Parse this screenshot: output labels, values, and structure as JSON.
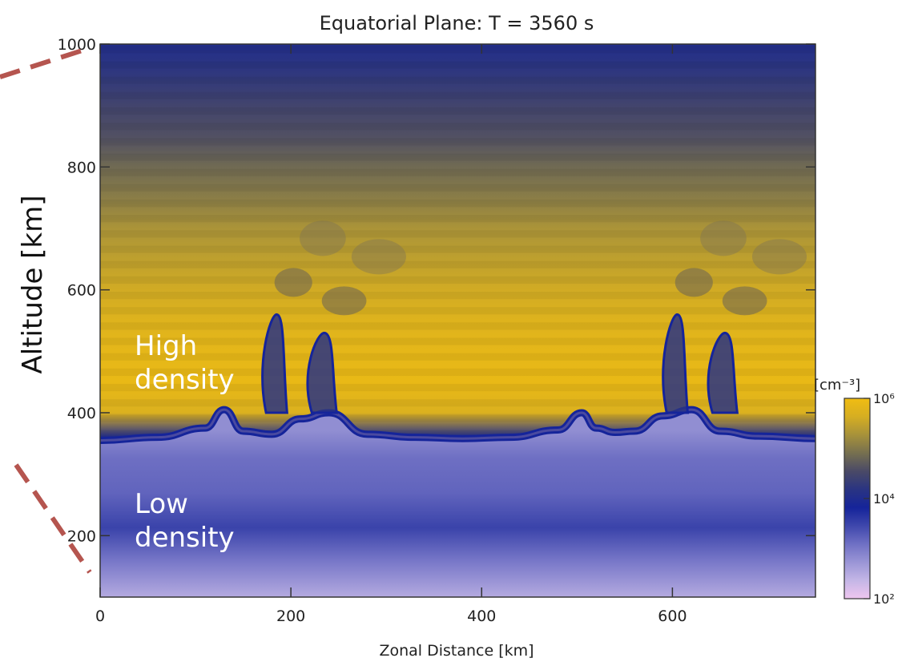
{
  "chart_data": {
    "type": "heatmap",
    "title": "Equatorial Plane: T =  3560 s",
    "xlabel": "Zonal Distance [km]",
    "ylabel": "Altitude [km]",
    "xlim": [
      0,
      750
    ],
    "ylim": [
      100,
      1000
    ],
    "x_ticks": [
      0,
      200,
      400,
      600
    ],
    "x_tick_labels": [
      "0",
      "200",
      "400",
      "600"
    ],
    "y_ticks": [
      200,
      400,
      600,
      800,
      1000
    ],
    "y_tick_labels": [
      "200",
      "400",
      "600",
      "800",
      "1000"
    ],
    "colorbar": {
      "unit_label": "[cm⁻³]",
      "scale": "log",
      "range": [
        100,
        1000000
      ],
      "ticks": [
        {
          "value": 100,
          "label": "10²"
        },
        {
          "value": 10000,
          "label": "10⁴"
        },
        {
          "value": 1000000,
          "label": "10⁶"
        }
      ],
      "colors_low_to_high": [
        "#efc6ef",
        "#c4b6e6",
        "#9a95d6",
        "#6f70c4",
        "#3f47ac",
        "#15249a",
        "#2a3482",
        "#4a4a66",
        "#77704f",
        "#a7923a",
        "#d6ae22",
        "#f0bd12"
      ]
    },
    "annotations": [
      {
        "text_line1": "High",
        "text_line2": "density",
        "x": 25,
        "y": 480
      },
      {
        "text_line1": "Low",
        "text_line2": "density",
        "x": 25,
        "y": 180
      }
    ],
    "profile": {
      "altitude_km": [
        100,
        150,
        200,
        250,
        300,
        340,
        360,
        400,
        450,
        500,
        550,
        600,
        650,
        700,
        750,
        800,
        850,
        900,
        950,
        1000
      ],
      "log10_density": [
        2.5,
        3.0,
        3.4,
        3.1,
        3.3,
        2.9,
        4.0,
        5.7,
        5.9,
        5.85,
        5.75,
        5.6,
        5.45,
        5.3,
        5.05,
        4.85,
        4.6,
        4.45,
        4.25,
        4.05
      ]
    },
    "boundary": {
      "x_km": [
        0,
        60,
        110,
        130,
        150,
        180,
        210,
        240,
        280,
        330,
        380,
        430,
        480,
        505,
        520,
        540,
        560,
        590,
        620,
        650,
        690,
        750
      ],
      "altitude_km": [
        355,
        360,
        375,
        405,
        370,
        365,
        390,
        400,
        365,
        360,
        358,
        360,
        372,
        400,
        375,
        368,
        370,
        395,
        405,
        370,
        362,
        358
      ]
    },
    "plumes": [
      {
        "x_km": 185,
        "base_km": 400,
        "top_km": 560,
        "width_km": 22
      },
      {
        "x_km": 235,
        "base_km": 400,
        "top_km": 530,
        "width_km": 26
      },
      {
        "x_km": 605,
        "base_km": 400,
        "top_km": 560,
        "width_km": 22
      },
      {
        "x_km": 655,
        "base_km": 400,
        "top_km": 530,
        "width_km": 26
      }
    ],
    "grid": false
  },
  "decor": {
    "dashed_line_color": "#b5554f"
  }
}
